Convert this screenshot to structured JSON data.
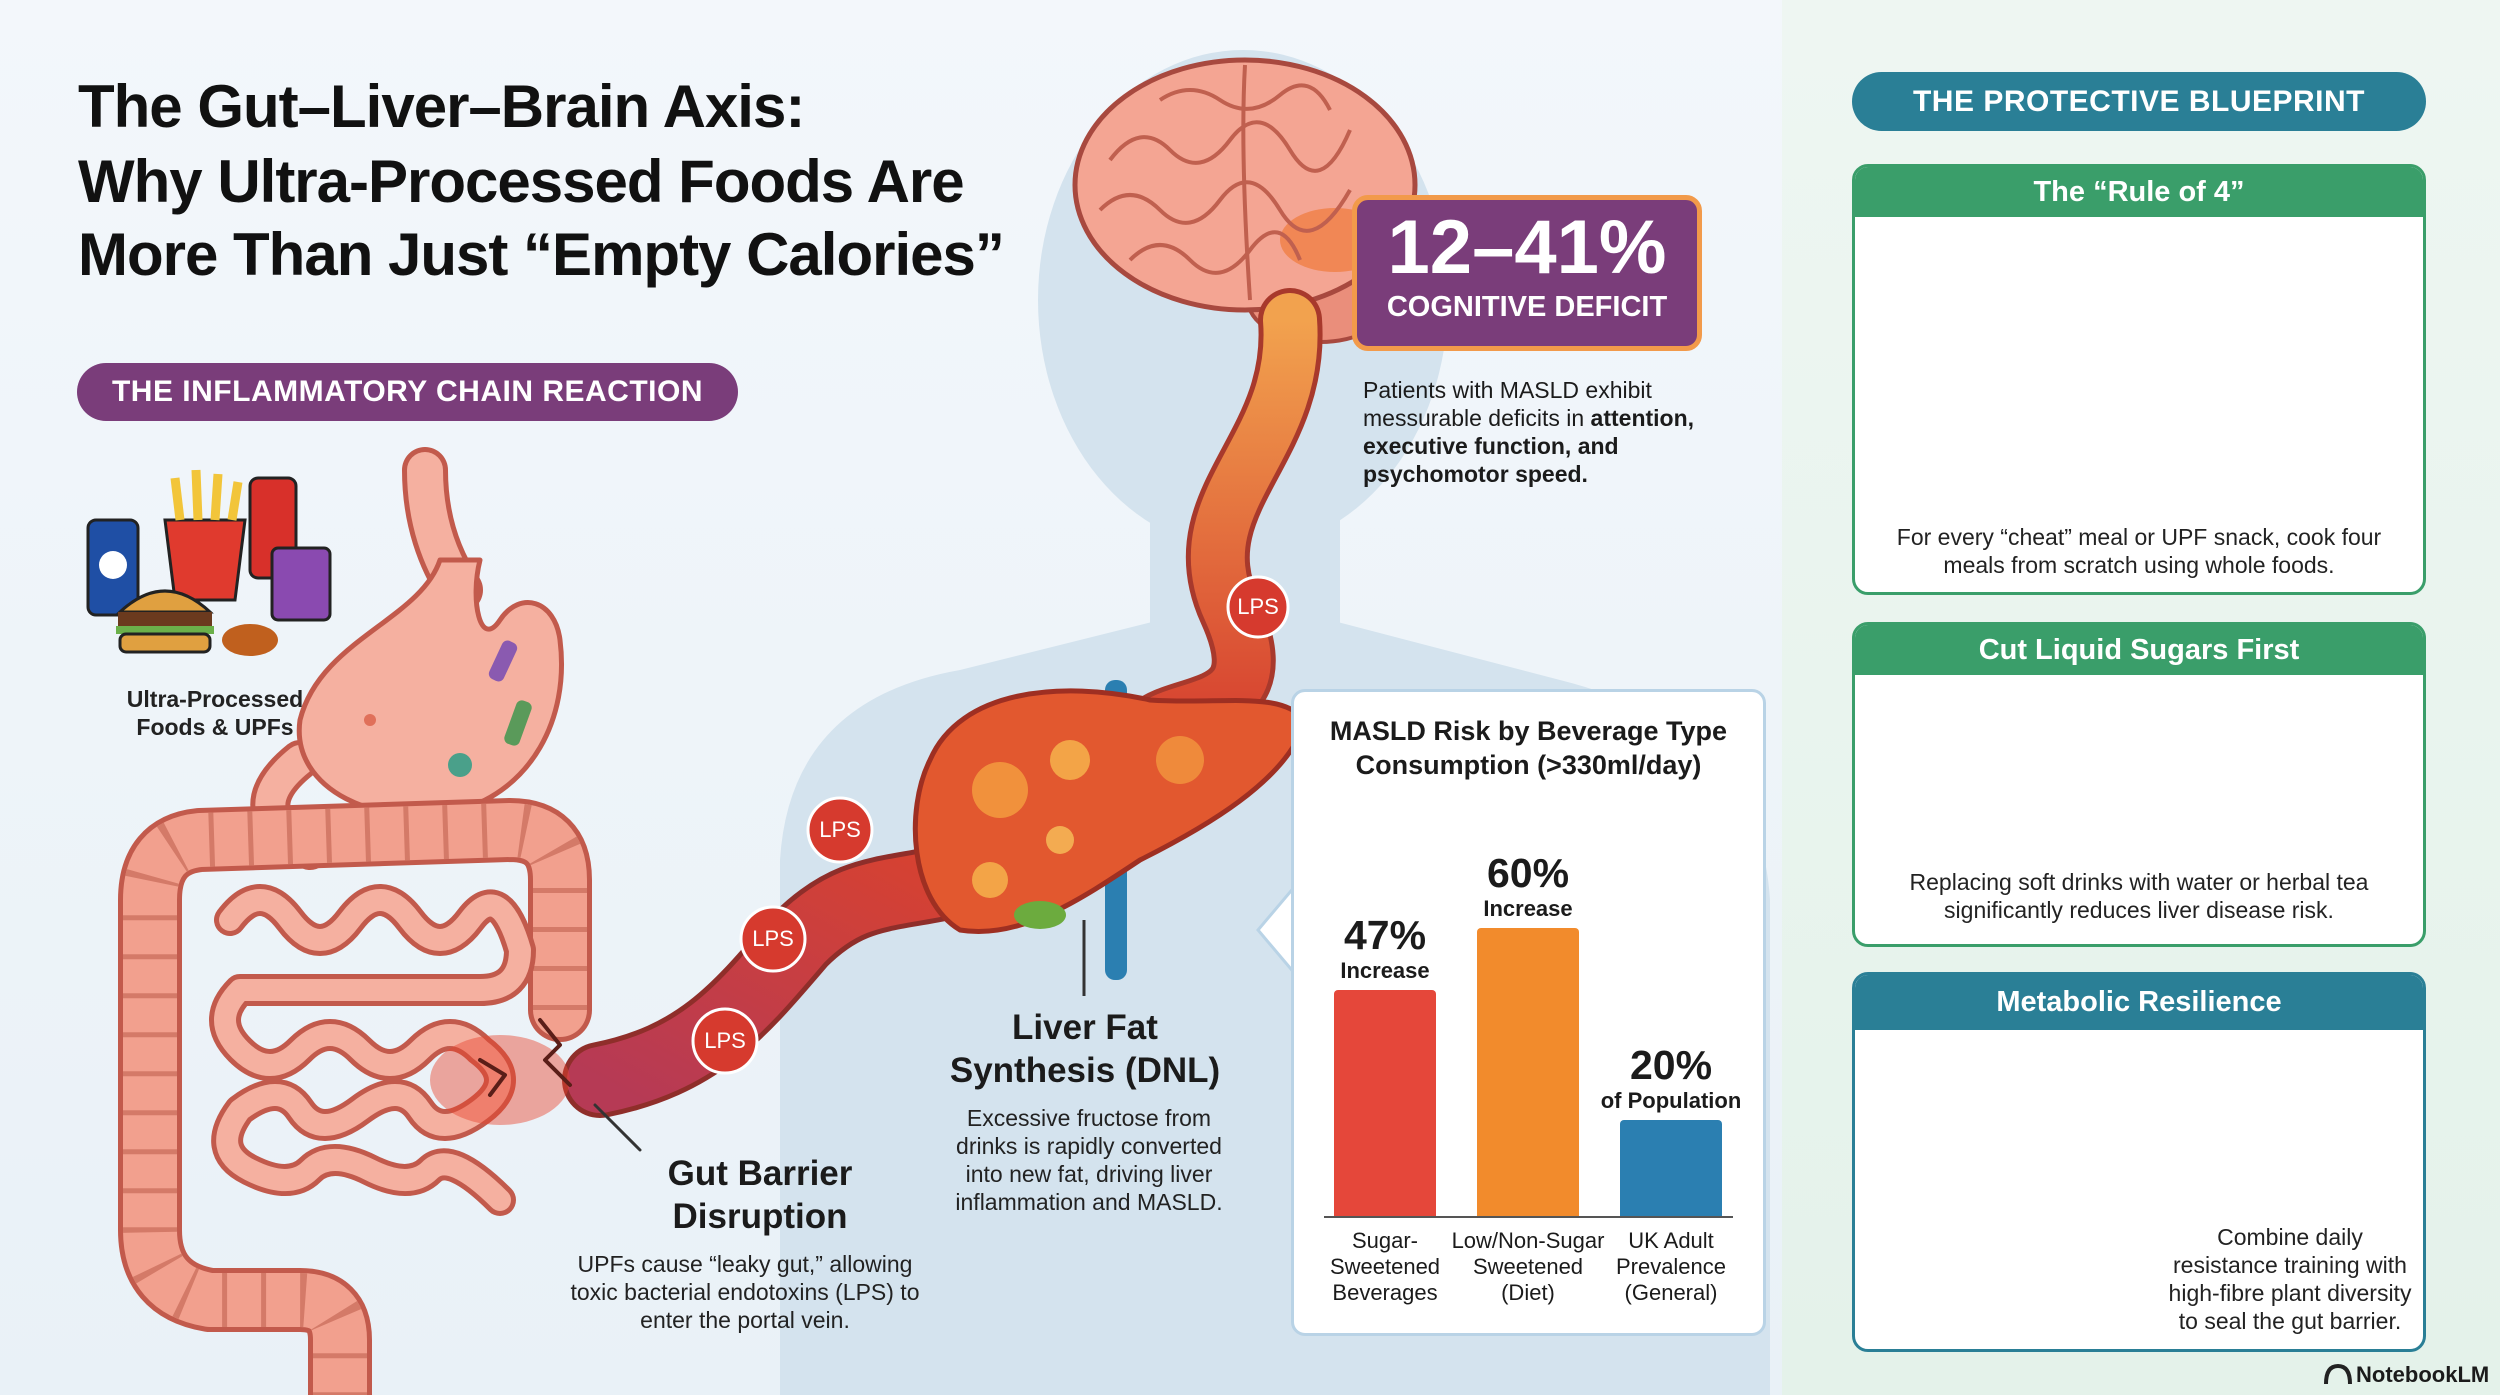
{
  "header": {
    "title_lines": [
      "The Gut–Liver–Brain Axis:",
      "Why Ultra-Processed Foods Are",
      "More Than Just “Empty Calories”"
    ]
  },
  "chain": {
    "section_label": "THE INFLAMMATORY CHAIN REACTION",
    "upf_label": "Ultra-Processed Foods & UPFs",
    "gut_title": "Gut Barrier Disruption",
    "gut_text": "UPFs cause “leaky gut,” allowing toxic bacterial endotoxins (LPS) to enter the portal vein.",
    "liver_title": "Liver Fat Synthesis (DNL)",
    "liver_text": "Excessive fructose from drinks is rapidly converted into new fat, driving liver inflammation and MASLD.",
    "lps": [
      "LPS",
      "LPS",
      "LPS",
      "LPS"
    ]
  },
  "brain": {
    "stat": "12–41%",
    "stat_label": "COGNITIVE DEFICIT",
    "text": "Patients with MASLD exhibit messurable deficits in",
    "text_bold": "attention, executive function, and psychomotor speed."
  },
  "chart_data": {
    "type": "bar",
    "title": "MASLD Risk by Beverage Type Consumption (>330ml/day)",
    "categories": [
      "Sugar-Sweetened Beverages",
      "Low/Non-Sugar Sweetened (Diet)",
      "UK Adult Prevalence (General)"
    ],
    "values": [
      47,
      60,
      20
    ],
    "value_labels": [
      "47%",
      "60%",
      "20%"
    ],
    "value_notes": [
      "Increase",
      "Increase",
      "of Population"
    ],
    "colors": [
      "#e5473a",
      "#f28b2c",
      "#2b7fb1"
    ]
  },
  "blueprint": {
    "label": "THE PROTECTIVE BLUEPRINT",
    "cards": [
      {
        "title": "The “Rule of 4”",
        "text": "For every “cheat” meal or UPF snack, cook four meals from scratch using whole foods."
      },
      {
        "title": "Cut Liquid Sugars First",
        "text": "Replacing soft drinks with water or herbal tea significantly reduces liver disease risk."
      },
      {
        "title": "Metabolic Resilience",
        "text": "Combine daily resistance training with high-fibre plant diversity to seal the gut barrier."
      }
    ]
  },
  "footer": {
    "brand": "NotebookLM"
  }
}
